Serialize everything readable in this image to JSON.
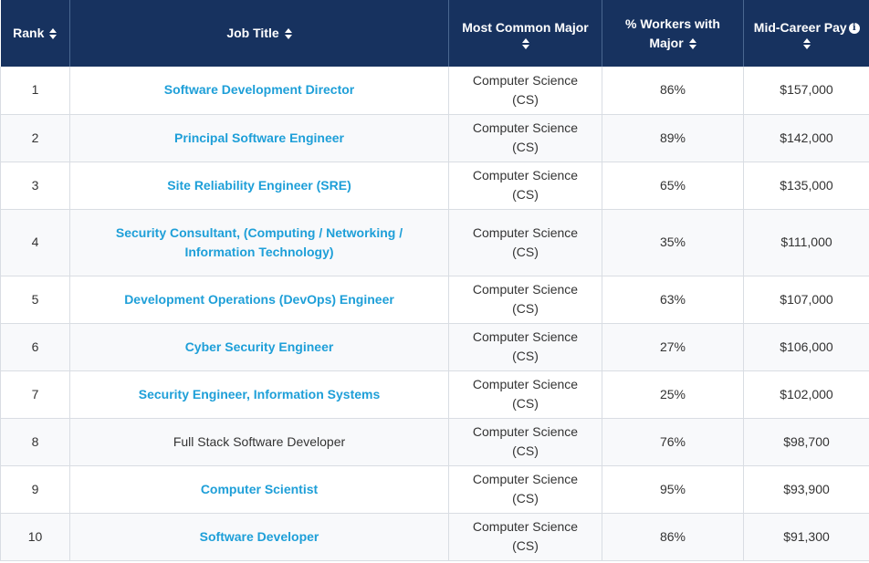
{
  "table": {
    "headers": {
      "rank": "Rank",
      "job_title": "Job Title",
      "major": "Most Common Major",
      "pct_workers": "% Workers with Major",
      "pay": "Mid-Career Pay"
    },
    "info_glyph": "i",
    "rows": [
      {
        "rank": "1",
        "title": "Software Development Director",
        "linked": true,
        "major": "Computer Science (CS)",
        "pct": "86%",
        "pay": "$157,000"
      },
      {
        "rank": "2",
        "title": "Principal Software Engineer",
        "linked": true,
        "major": "Computer Science (CS)",
        "pct": "89%",
        "pay": "$142,000"
      },
      {
        "rank": "3",
        "title": "Site Reliability Engineer (SRE)",
        "linked": true,
        "major": "Computer Science (CS)",
        "pct": "65%",
        "pay": "$135,000"
      },
      {
        "rank": "4",
        "title": "Security Consultant, (Computing / Networking / Information Technology)",
        "linked": true,
        "major": "Computer Science (CS)",
        "pct": "35%",
        "pay": "$111,000"
      },
      {
        "rank": "5",
        "title": "Development Operations (DevOps) Engineer",
        "linked": true,
        "major": "Computer Science (CS)",
        "pct": "63%",
        "pay": "$107,000"
      },
      {
        "rank": "6",
        "title": "Cyber Security Engineer",
        "linked": true,
        "major": "Computer Science (CS)",
        "pct": "27%",
        "pay": "$106,000"
      },
      {
        "rank": "7",
        "title": "Security Engineer, Information Systems",
        "linked": true,
        "major": "Computer Science (CS)",
        "pct": "25%",
        "pay": "$102,000"
      },
      {
        "rank": "8",
        "title": "Full Stack Software Developer",
        "linked": false,
        "major": "Computer Science (CS)",
        "pct": "76%",
        "pay": "$98,700"
      },
      {
        "rank": "9",
        "title": "Computer Scientist",
        "linked": true,
        "major": "Computer Science (CS)",
        "pct": "95%",
        "pay": "$93,900"
      },
      {
        "rank": "10",
        "title": "Software Developer",
        "linked": true,
        "major": "Computer Science (CS)",
        "pct": "86%",
        "pay": "$91,300"
      }
    ]
  },
  "colors": {
    "header_bg": "#17325f",
    "link": "#1e9fd8",
    "text": "#333333"
  }
}
